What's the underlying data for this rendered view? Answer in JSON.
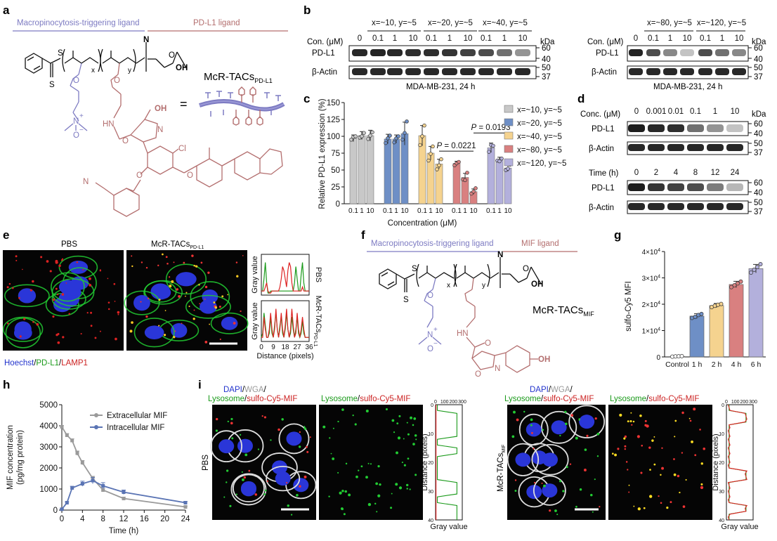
{
  "panels": {
    "a": {
      "letter": "a",
      "seg_left": "Macropinocytosis-triggering ligand",
      "seg_right": "PD-L1 ligand",
      "name_main": "McR-TACs",
      "name_sub": "PD-L1",
      "chem": {
        "S1": "S",
        "S2": "S",
        "x": "x",
        "y": "y",
        "N": "N",
        "OH": "OH",
        "O": "O",
        "Np": "N",
        "plus": "+",
        "Om": "O",
        "minus": "−",
        "HN": "HN",
        "OH2": "OH",
        "N2": "N",
        "Cl": "Cl",
        "NC": "N",
        "O2": "O",
        "O3": "O",
        "O4": "O",
        "O5": "O",
        "O6": "O"
      },
      "equals": "="
    },
    "b": {
      "letter": "b",
      "left_groups": [
        "x=~10, y=~5",
        "x=~20, y=~5",
        "x=~40, y=~5"
      ],
      "right_groups": [
        "x=~80, y=~5",
        "x=~120, y=~5"
      ],
      "con_label": "Con. (μM)",
      "conc_left": [
        "0",
        "0.1",
        "1",
        "10",
        "0.1",
        "1",
        "10",
        "0.1",
        "1",
        "10"
      ],
      "conc_right": [
        "0",
        "0.1",
        "1",
        "10",
        "0.1",
        "1",
        "10"
      ],
      "kda": "kDa",
      "row1": "PD-L1",
      "row2": "β-Actin",
      "mw1": [
        "60",
        "40"
      ],
      "mw2": [
        "50",
        "37"
      ],
      "caption": "MDA-MB-231, 24 h"
    },
    "c": {
      "letter": "c"
    },
    "d": {
      "letter": "d",
      "conc_label": "Conc. (μM)",
      "concs": [
        "0",
        "0.001",
        "0.01",
        "0.1",
        "1",
        "10"
      ],
      "time_label": "Time (h)",
      "times": [
        "0",
        "2",
        "4",
        "8",
        "12",
        "24"
      ],
      "kda": "kDa",
      "row1": "PD-L1",
      "row2": "β-Actin",
      "mw1": [
        "60",
        "40"
      ],
      "mw2": [
        "50",
        "37"
      ]
    },
    "e": {
      "letter": "e",
      "t1": "PBS",
      "t2_main": "McR-TACs",
      "t2_sub": "PD-L1",
      "leg_a": "Hoechst",
      "leg_b": "PD-L1",
      "leg_c": "LAMP1",
      "slash": "/",
      "plot_label_1": "PBS",
      "plot_label_2": "McR-TACs",
      "plot_label_2_sub": "PD-L1",
      "ylabel": "Gray value",
      "xlabel": "Distance (pixels)",
      "xticks": [
        "0",
        "9",
        "18",
        "27",
        "36"
      ]
    },
    "f": {
      "letter": "f",
      "seg_left": "Macropinocytosis-triggering ligand",
      "seg_right": "MIF ligand",
      "name_main": "McR-TACs",
      "name_sub": "MIF",
      "chem": {
        "S1": "S",
        "S2": "S",
        "x": "x",
        "y": "y",
        "N": "N",
        "OH": "OH",
        "O": "O",
        "Np": "N",
        "plus": "+",
        "Om": "O",
        "minus": "−",
        "HN": "HN",
        "O2": "O",
        "O3": "O",
        "N2": "N",
        "OH2": "OH",
        "O4": "O"
      }
    },
    "g": {
      "letter": "g"
    },
    "h": {
      "letter": "h"
    },
    "i": {
      "letter": "i",
      "leg1_a": "DAPI",
      "leg1_b": "WGA",
      "leg1_c": "Lysosome",
      "leg1_d": "sulfo-Cy5-MIF",
      "leg2_a": "Lysosome",
      "leg2_b": "sulfo-Cy5-MIF",
      "slash": "/",
      "row1_label": "PBS",
      "row2_label_main": "McR-TACs",
      "row2_label_sub": "MIF",
      "ylabel": "Distance (pixels)",
      "xlabel": "Gray value",
      "yticks": [
        "0",
        "10",
        "20",
        "30",
        "40"
      ],
      "xticks": [
        "0",
        "100",
        "200",
        "300"
      ]
    }
  },
  "chart_data": [
    {
      "id": "c",
      "type": "bar",
      "ylabel": "Relative PD-L1 expression (%)",
      "xlabel": "Concentration (μM)",
      "ylim": [
        0,
        150
      ],
      "yticks": [
        0,
        25,
        50,
        75,
        100,
        125,
        150
      ],
      "categories": [
        "0.1",
        "1",
        "10"
      ],
      "series": [
        {
          "name": "x=~10, y=~5",
          "color": "#c8c8c8",
          "values": [
            97,
            101,
            101
          ],
          "errors": [
            5,
            6,
            8
          ],
          "points": [
            [
              95,
              99,
              100
            ],
            [
              98,
              100,
              105
            ],
            [
              96,
              101,
              106
            ]
          ]
        },
        {
          "name": "x=~20, y=~5",
          "color": "#6e8fc6",
          "values": [
            96,
            96,
            104
          ],
          "errors": [
            7,
            6,
            17
          ],
          "points": [
            [
              90,
              97,
              101
            ],
            [
              91,
              97,
              100
            ],
            [
              95,
              105,
              122
            ]
          ]
        },
        {
          "name": "x=~40, y=~5",
          "color": "#f5d38f",
          "values": [
            101,
            75,
            59
          ],
          "errors": [
            15,
            10,
            7
          ],
          "points": [
            [
              87,
              100,
              116
            ],
            [
              64,
              74,
              85
            ],
            [
              51,
              57,
              66
            ]
          ]
        },
        {
          "name": "x=~80, y=~5",
          "color": "#d98080",
          "values": [
            60,
            39,
            18
          ],
          "errors": [
            3,
            6,
            4
          ],
          "points": [
            [
              57,
              60,
              62
            ],
            [
              36,
              35,
              46
            ],
            [
              15,
              18,
              23
            ]
          ]
        },
        {
          "name": "x=~120, y=~5",
          "color": "#b3b0dc",
          "values": [
            83,
            65,
            53
          ],
          "errors": [
            7,
            4,
            5
          ],
          "points": [
            [
              77,
              87,
              86
            ],
            [
              64,
              63,
              67
            ],
            [
              50,
              52,
              58
            ]
          ]
        }
      ],
      "annotations": [
        {
          "label": "P",
          "value": "0.0221",
          "from": [
            2,
            2
          ],
          "to": [
            3,
            2
          ]
        },
        {
          "label": "P",
          "value": "0.0193",
          "from": [
            3,
            2
          ],
          "to": [
            4,
            2
          ]
        }
      ],
      "legend": "right"
    },
    {
      "id": "g",
      "type": "bar",
      "ylabel": "sulfo-Cy5 MFI",
      "ylim": [
        0,
        40000
      ],
      "yticks": [
        {
          "v": 0,
          "m": "0",
          "e": ""
        },
        {
          "v": 10000,
          "m": "1×10",
          "e": "4"
        },
        {
          "v": 20000,
          "m": "2×10",
          "e": "4"
        },
        {
          "v": 30000,
          "m": "3×10",
          "e": "4"
        },
        {
          "v": 40000,
          "m": "4×10",
          "e": "4"
        }
      ],
      "categories": [
        "Control",
        "1 h",
        "2 h",
        "4 h",
        "6 h"
      ],
      "colors": [
        "#ffffff",
        "#6e8fc6",
        "#f5d38f",
        "#d98080",
        "#b3b0dc"
      ],
      "values": [
        200,
        15500,
        19500,
        27500,
        33500
      ],
      "errors": [
        100,
        900,
        800,
        1200,
        1600
      ],
      "points": [
        [
          100,
          200,
          250,
          300
        ],
        [
          14800,
          15200,
          15900,
          16300
        ],
        [
          18900,
          19400,
          19800,
          20100
        ],
        [
          26500,
          27200,
          27900,
          28600
        ],
        [
          32000,
          33100,
          34100,
          35200
        ]
      ]
    },
    {
      "id": "h",
      "type": "line",
      "ylabel_1": "MIF concentration",
      "ylabel_2": "(pg/mg protein)",
      "xlabel": "Time (h)",
      "xlim": [
        0,
        24
      ],
      "ylim": [
        0,
        5000
      ],
      "xticks": [
        0,
        4,
        8,
        12,
        16,
        20,
        24
      ],
      "yticks": [
        0,
        1000,
        2000,
        3000,
        4000,
        5000
      ],
      "series": [
        {
          "name": "Extracellular MIF",
          "color": "#9a9a9a",
          "x": [
            0,
            1,
            2,
            3,
            4,
            6,
            8,
            12,
            24
          ],
          "y": [
            3950,
            3550,
            3300,
            2700,
            2250,
            1500,
            950,
            550,
            150
          ],
          "err": [
            60,
            80,
            80,
            100,
            100,
            100,
            80,
            60,
            40
          ]
        },
        {
          "name": "Intracellular MIF",
          "color": "#5a74b4",
          "x": [
            0,
            1,
            2,
            4,
            6,
            8,
            12,
            24
          ],
          "y": [
            40,
            350,
            1050,
            1250,
            1400,
            1150,
            850,
            350
          ],
          "err": [
            20,
            40,
            80,
            120,
            150,
            150,
            100,
            60
          ]
        }
      ],
      "legend": "top-right"
    }
  ]
}
